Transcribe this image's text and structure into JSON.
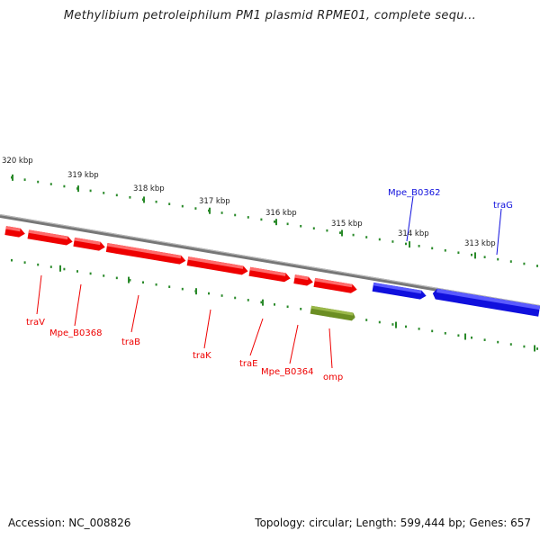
{
  "title": "Methylibium petroleiphilum PM1 plasmid RPME01, complete sequ...",
  "footer": {
    "accession": "Accession: NC_008826",
    "summary": "Topology: circular; Length: 599,444 bp; Genes: 657"
  },
  "colors": {
    "forward_gene": "#ee0000",
    "reverse_gene": "#1010dd",
    "other_feature": "#6b8e23",
    "backbone": "#888888",
    "tick": "#2a8a2a"
  },
  "scale_labels": [
    "320 kbp",
    "319 kbp",
    "318 kbp",
    "317 kbp",
    "316 kbp",
    "315 kbp",
    "314 kbp",
    "313 kbp"
  ],
  "genes": [
    {
      "label": "traV",
      "strand": "forward"
    },
    {
      "label": "Mpe_B0368",
      "strand": "forward"
    },
    {
      "label": "traB",
      "strand": "forward"
    },
    {
      "label": "traK",
      "strand": "forward"
    },
    {
      "label": "traE",
      "strand": "forward"
    },
    {
      "label": "Mpe_B0364",
      "strand": "forward"
    },
    {
      "label": "omp",
      "strand": "forward"
    },
    {
      "label": "Mpe_B0362",
      "strand": "reverse"
    },
    {
      "label": "traG",
      "strand": "reverse"
    }
  ]
}
